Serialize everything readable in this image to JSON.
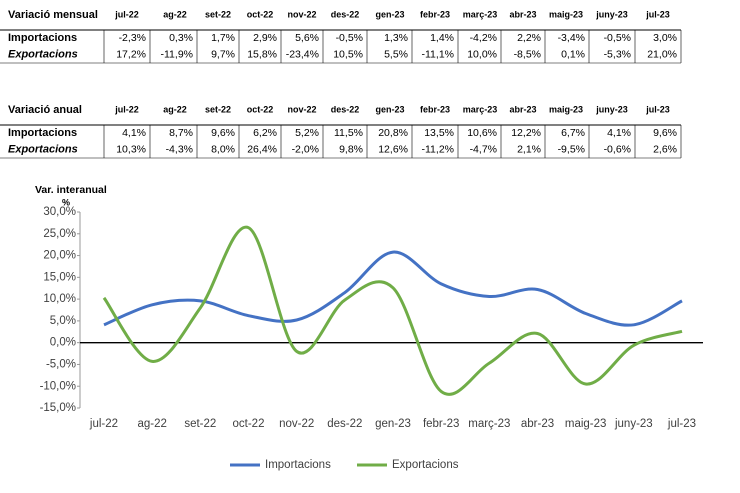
{
  "monthly_table": {
    "title": "Variació mensual",
    "columns": [
      "jul-22",
      "ag-22",
      "set-22",
      "oct-22",
      "nov-22",
      "des-22",
      "gen-23",
      "febr-23",
      "març-23",
      "abr-23",
      "maig-23",
      "juny-23",
      "jul-23"
    ],
    "rows": [
      {
        "label": "Importacions",
        "values": [
          "-2,3%",
          "0,3%",
          "1,7%",
          "2,9%",
          "5,6%",
          "-0,5%",
          "1,3%",
          "1,4%",
          "-4,2%",
          "2,2%",
          "-3,4%",
          "-0,5%",
          "3,0%"
        ]
      },
      {
        "label": "Exportacions",
        "values": [
          "17,2%",
          "-11,9%",
          "9,7%",
          "15,8%",
          "-23,4%",
          "10,5%",
          "5,5%",
          "-11,1%",
          "10,0%",
          "-8,5%",
          "0,1%",
          "-5,3%",
          "21,0%"
        ]
      }
    ]
  },
  "annual_table": {
    "title": "Variació anual",
    "columns": [
      "jul-22",
      "ag-22",
      "set-22",
      "oct-22",
      "nov-22",
      "des-22",
      "gen-23",
      "febr-23",
      "març-23",
      "abr-23",
      "maig-23",
      "juny-23",
      "jul-23"
    ],
    "rows": [
      {
        "label": "Importacions",
        "values": [
          "4,1%",
          "8,7%",
          "9,6%",
          "6,2%",
          "5,2%",
          "11,5%",
          "20,8%",
          "13,5%",
          "10,6%",
          "12,2%",
          "6,7%",
          "4,1%",
          "9,6%"
        ]
      },
      {
        "label": "Exportacions",
        "values": [
          "10,3%",
          "-4,3%",
          "8,0%",
          "26,4%",
          "-2,0%",
          "9,8%",
          "12,6%",
          "-11,2%",
          "-4,7%",
          "2,1%",
          "-9,5%",
          "-0,6%",
          "2,6%"
        ]
      }
    ]
  },
  "chart_data": {
    "type": "line",
    "title": "Var. interanual",
    "y_unit": "%",
    "categories": [
      "jul-22",
      "ag-22",
      "set-22",
      "oct-22",
      "nov-22",
      "des-22",
      "gen-23",
      "febr-23",
      "març-23",
      "abr-23",
      "maig-23",
      "juny-23",
      "jul-23"
    ],
    "series": [
      {
        "name": "Importacions",
        "color": "#4472c4",
        "values": [
          4.1,
          8.7,
          9.6,
          6.2,
          5.2,
          11.5,
          20.8,
          13.5,
          10.6,
          12.2,
          6.7,
          4.1,
          9.6
        ]
      },
      {
        "name": "Exportacions",
        "color": "#70ad47",
        "values": [
          10.3,
          -4.3,
          8.0,
          26.4,
          -2.0,
          9.8,
          12.6,
          -11.2,
          -4.7,
          2.1,
          -9.5,
          -0.6,
          2.6
        ]
      }
    ],
    "ylim": [
      -15,
      30
    ],
    "yticks": [
      {
        "value": -15,
        "label": "-15,0%"
      },
      {
        "value": -10,
        "label": "-10,0%"
      },
      {
        "value": -5,
        "label": "-5,0%"
      },
      {
        "value": 0,
        "label": "0,0%"
      },
      {
        "value": 5,
        "label": "5,0%"
      },
      {
        "value": 10,
        "label": "10,0%"
      },
      {
        "value": 15,
        "label": "15,0%"
      },
      {
        "value": 20,
        "label": "20,0%"
      },
      {
        "value": 25,
        "label": "25,0%"
      },
      {
        "value": 30,
        "label": "30,0%"
      }
    ],
    "smooth": true,
    "legend": "bottom"
  }
}
